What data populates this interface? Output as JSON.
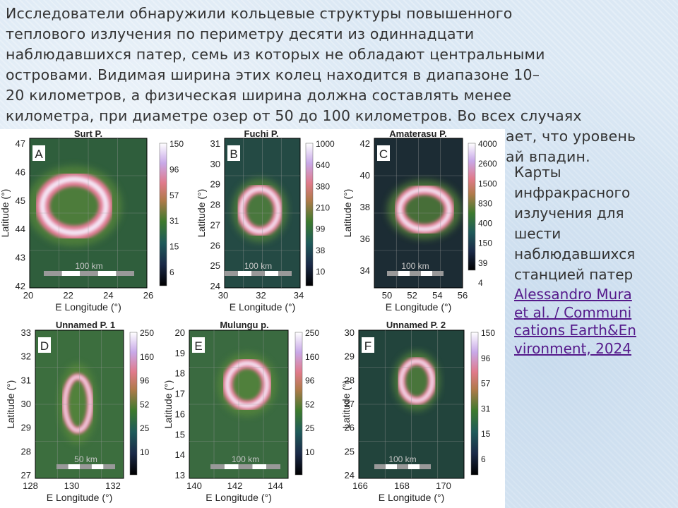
{
  "paragraph": {
    "lines": [
      "Исследователи обнаружили кольцевые структуры повышенного",
      "теплового излучения по периметру десяти из одиннадцати",
      "наблюдавшихся патер, семь из которых не обладают центральными",
      "островами. Видимая ширина этих колец находится в диапазоне 10–",
      "20 километров, а физическая ширина должна составлять менее",
      "километра, при диаметре озер от 50 до 100 километров. Во всех случаях",
      "ает, что уровень",
      "ай впадин."
    ]
  },
  "caption": {
    "lines": [
      "Карты",
      "инфракрасного",
      "излучения для",
      "шести",
      "наблюдавшихся",
      "станцией патер"
    ],
    "link": [
      "Alessandro Mura ",
      "et al. / Communi",
      "cations Earth&En",
      "vironment, 2024"
    ]
  },
  "figure": {
    "y_axis_label": "Latitude (°)",
    "x_axis_label": "E Longitude (°)",
    "panels": [
      {
        "letter": "A",
        "title": "Surt P.",
        "yticks": [
          "47",
          "46",
          "45",
          "44",
          "43",
          "42"
        ],
        "xticks": [
          "20",
          "22",
          "24",
          "26"
        ],
        "colorbar": [
          "150",
          "96",
          "57",
          "31",
          "15",
          "6"
        ],
        "scale": "100 km"
      },
      {
        "letter": "B",
        "title": "Fuchi P.",
        "yticks": [
          "31",
          "30",
          "29",
          "28",
          "27",
          "26",
          "25",
          "24"
        ],
        "xticks": [
          "30",
          "32",
          "34"
        ],
        "colorbar": [
          "1000",
          "640",
          "380",
          "210",
          "99",
          "38",
          "10"
        ],
        "scale": "100 km"
      },
      {
        "letter": "C",
        "title": "Amaterasu P.",
        "yticks": [
          "42",
          "40",
          "38",
          "36",
          "34"
        ],
        "xticks": [
          "50",
          "52",
          "54",
          "56"
        ],
        "colorbar": [
          "4000",
          "2600",
          "1500",
          "830",
          "400",
          "150",
          "39",
          "4"
        ],
        "scale": "100 km"
      },
      {
        "letter": "D",
        "title": "Unnamed P. 1",
        "yticks": [
          "33",
          "32",
          "31",
          "30",
          "29",
          "28",
          "27"
        ],
        "xticks": [
          "128",
          "130",
          "132"
        ],
        "colorbar": [
          "250",
          "160",
          "96",
          "52",
          "25",
          "10"
        ],
        "scale": "50 km"
      },
      {
        "letter": "E",
        "title": "Mulungu p.",
        "yticks": [
          "20",
          "19",
          "18",
          "17",
          "16",
          "15",
          "14",
          "13"
        ],
        "xticks": [
          "140",
          "142",
          "144"
        ],
        "colorbar": [
          "250",
          "160",
          "96",
          "52",
          "25",
          "10"
        ],
        "scale": "100 km"
      },
      {
        "letter": "F",
        "title": "Unnamed P. 2",
        "yticks": [
          "30",
          "29",
          "28",
          "27",
          "26",
          "25",
          "24"
        ],
        "xticks": [
          "166",
          "168",
          "170"
        ],
        "colorbar": [
          "150",
          "96",
          "57",
          "31",
          "15",
          "6"
        ],
        "scale": "100 km"
      }
    ]
  }
}
